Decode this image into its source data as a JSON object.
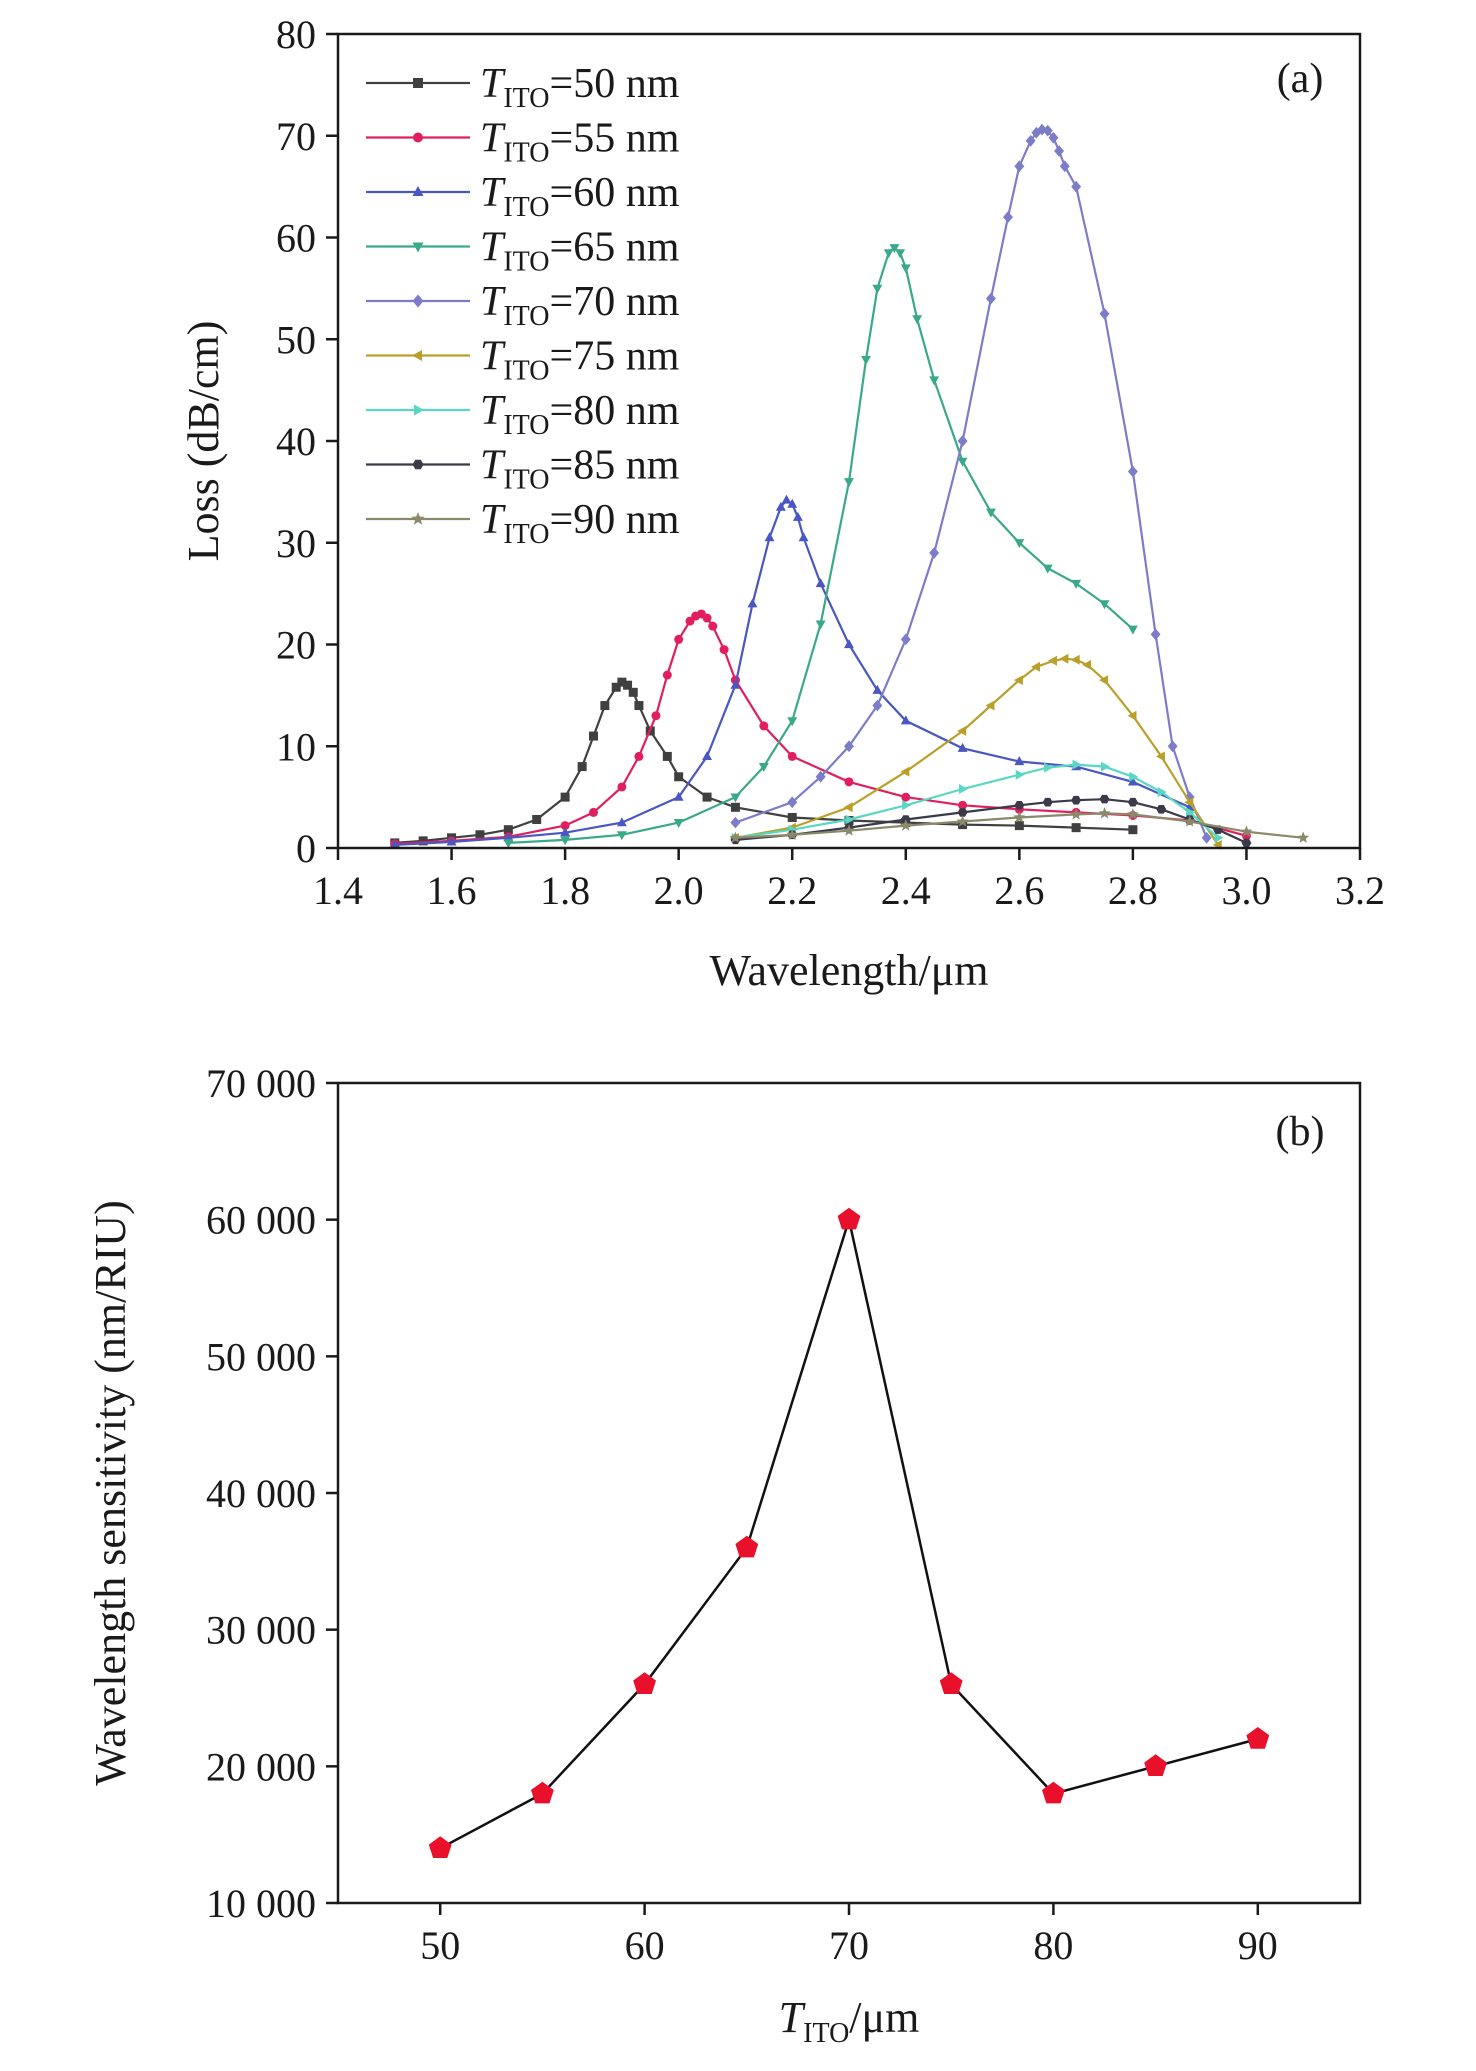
{
  "chart_data": [
    {
      "id": "a",
      "type": "line",
      "panel_label": "(a)",
      "xlabel": "Wavelength/μm",
      "ylabel": "Loss (dB/cm)",
      "xlim": [
        1.4,
        3.2
      ],
      "ylim": [
        0,
        80
      ],
      "x_ticks": [
        1.4,
        1.6,
        1.8,
        2.0,
        2.2,
        2.4,
        2.6,
        2.8,
        3.0,
        3.2
      ],
      "x_tick_labels": [
        "1.4",
        "1.6",
        "1.8",
        "2.0",
        "2.2",
        "2.4",
        "2.6",
        "2.8",
        "3.0",
        "3.2"
      ],
      "y_ticks": [
        0,
        10,
        20,
        30,
        40,
        50,
        60,
        70,
        80
      ],
      "y_tick_labels": [
        "0",
        "10",
        "20",
        "30",
        "40",
        "50",
        "60",
        "70",
        "80"
      ],
      "legend_position": "top-left",
      "legend_var": "T",
      "legend_sub": "ITO",
      "series": [
        {
          "name": "TITO=50 nm",
          "legend_value": "=50 nm",
          "color": "#404040",
          "marker": "square",
          "x": [
            1.5,
            1.55,
            1.6,
            1.65,
            1.7,
            1.75,
            1.8,
            1.83,
            1.85,
            1.87,
            1.89,
            1.9,
            1.91,
            1.92,
            1.93,
            1.95,
            1.98,
            2.0,
            2.05,
            2.1,
            2.2,
            2.3,
            2.4,
            2.5,
            2.6,
            2.7,
            2.8
          ],
          "y": [
            0.5,
            0.7,
            1.0,
            1.3,
            1.8,
            2.8,
            5.0,
            8.0,
            11.0,
            14.0,
            15.8,
            16.3,
            16.0,
            15.3,
            14.0,
            11.5,
            9.0,
            7.0,
            5.0,
            4.0,
            3.0,
            2.7,
            2.5,
            2.3,
            2.2,
            2.0,
            1.8
          ]
        },
        {
          "name": "TITO=55 nm",
          "legend_value": "=55 nm",
          "color": "#e0205e",
          "marker": "circle",
          "x": [
            1.5,
            1.6,
            1.7,
            1.8,
            1.85,
            1.9,
            1.93,
            1.96,
            1.98,
            2.0,
            2.02,
            2.03,
            2.04,
            2.05,
            2.06,
            2.08,
            2.1,
            2.15,
            2.2,
            2.3,
            2.4,
            2.5,
            2.6,
            2.7,
            2.8,
            2.9,
            3.0
          ],
          "y": [
            0.4,
            0.7,
            1.1,
            2.2,
            3.5,
            6.0,
            9.0,
            13.0,
            17.0,
            20.5,
            22.3,
            22.8,
            23.0,
            22.6,
            21.8,
            19.5,
            16.5,
            12.0,
            9.0,
            6.5,
            5.0,
            4.2,
            3.8,
            3.5,
            3.2,
            2.7,
            1.2
          ]
        },
        {
          "name": "TITO=60 nm",
          "legend_value": "=60 nm",
          "color": "#4a56c2",
          "marker": "triangle-up",
          "x": [
            1.5,
            1.6,
            1.7,
            1.8,
            1.9,
            2.0,
            2.05,
            2.1,
            2.13,
            2.16,
            2.18,
            2.19,
            2.2,
            2.21,
            2.22,
            2.25,
            2.3,
            2.35,
            2.4,
            2.5,
            2.6,
            2.7,
            2.8,
            2.9
          ],
          "y": [
            0.3,
            0.6,
            1.0,
            1.5,
            2.5,
            5.0,
            9.0,
            16.0,
            24.0,
            30.5,
            33.5,
            34.2,
            33.8,
            32.5,
            30.5,
            26.0,
            20.0,
            15.5,
            12.5,
            9.8,
            8.5,
            8.0,
            6.5,
            4.0
          ]
        },
        {
          "name": "TITO=65 nm",
          "legend_value": "=65 nm",
          "color": "#3aa88a",
          "marker": "triangle-down",
          "x": [
            1.7,
            1.8,
            1.9,
            2.0,
            2.1,
            2.15,
            2.2,
            2.25,
            2.3,
            2.33,
            2.35,
            2.37,
            2.38,
            2.39,
            2.4,
            2.42,
            2.45,
            2.5,
            2.55,
            2.6,
            2.65,
            2.7,
            2.75,
            2.8
          ],
          "y": [
            0.5,
            0.8,
            1.3,
            2.5,
            5.0,
            8.0,
            12.5,
            22.0,
            36.0,
            48.0,
            55.0,
            58.5,
            59.0,
            58.5,
            57.0,
            52.0,
            46.0,
            38.0,
            33.0,
            30.0,
            27.5,
            26.0,
            24.0,
            21.5
          ]
        },
        {
          "name": "TITO=70 nm",
          "legend_value": "=70 nm",
          "color": "#7c7cc8",
          "marker": "diamond",
          "x": [
            2.1,
            2.2,
            2.25,
            2.3,
            2.35,
            2.4,
            2.45,
            2.5,
            2.55,
            2.58,
            2.6,
            2.62,
            2.63,
            2.64,
            2.65,
            2.66,
            2.67,
            2.68,
            2.7,
            2.75,
            2.8,
            2.84,
            2.87,
            2.9,
            2.93
          ],
          "y": [
            2.5,
            4.5,
            7.0,
            10.0,
            14.0,
            20.5,
            29.0,
            40.0,
            54.0,
            62.0,
            67.0,
            69.5,
            70.3,
            70.6,
            70.5,
            69.8,
            68.5,
            67.0,
            65.0,
            52.5,
            37.0,
            21.0,
            10.0,
            5.0,
            1.0
          ]
        },
        {
          "name": "TITO=75 nm",
          "legend_value": "=75 nm",
          "color": "#b8a02a",
          "marker": "triangle-left",
          "x": [
            2.1,
            2.2,
            2.3,
            2.4,
            2.5,
            2.55,
            2.6,
            2.63,
            2.66,
            2.68,
            2.7,
            2.72,
            2.75,
            2.8,
            2.85,
            2.9,
            2.95
          ],
          "y": [
            1.0,
            2.0,
            4.0,
            7.5,
            11.5,
            14.0,
            16.5,
            17.8,
            18.4,
            18.6,
            18.5,
            18.0,
            16.5,
            13.0,
            9.0,
            4.5,
            0.3
          ]
        },
        {
          "name": "TITO=80 nm",
          "legend_value": "=80 nm",
          "color": "#5ad6c4",
          "marker": "triangle-right",
          "x": [
            2.1,
            2.2,
            2.3,
            2.4,
            2.5,
            2.6,
            2.65,
            2.7,
            2.75,
            2.8,
            2.85,
            2.9,
            2.95
          ],
          "y": [
            1.0,
            1.8,
            2.8,
            4.2,
            5.8,
            7.2,
            7.9,
            8.2,
            8.0,
            7.0,
            5.5,
            3.5,
            1.0
          ]
        },
        {
          "name": "TITO=85 nm",
          "legend_value": "=85 nm",
          "color": "#3a3a4a",
          "marker": "hexagon",
          "x": [
            2.1,
            2.2,
            2.3,
            2.4,
            2.5,
            2.6,
            2.65,
            2.7,
            2.75,
            2.8,
            2.85,
            2.9,
            2.95,
            3.0
          ],
          "y": [
            0.8,
            1.3,
            2.0,
            2.8,
            3.5,
            4.2,
            4.5,
            4.7,
            4.8,
            4.5,
            3.8,
            2.8,
            1.8,
            0.5
          ]
        },
        {
          "name": "TITO=90 nm",
          "legend_value": "=90 nm",
          "color": "#8a8a6a",
          "marker": "star",
          "x": [
            2.1,
            2.2,
            2.3,
            2.4,
            2.5,
            2.6,
            2.7,
            2.75,
            2.8,
            2.9,
            3.0,
            3.1
          ],
          "y": [
            1.0,
            1.3,
            1.7,
            2.2,
            2.6,
            3.0,
            3.3,
            3.4,
            3.3,
            2.6,
            1.6,
            1.0
          ]
        }
      ]
    },
    {
      "id": "b",
      "type": "line",
      "panel_label": "(b)",
      "xlabel_var": "T",
      "xlabel_sub": "ITO",
      "xlabel_rest": "/μm",
      "ylabel": "Wavelength sensitivity (nm/RIU)",
      "xlim": [
        45,
        95
      ],
      "ylim": [
        10000,
        70000
      ],
      "x_ticks": [
        50,
        60,
        70,
        80,
        90
      ],
      "x_tick_labels": [
        "50",
        "60",
        "70",
        "80",
        "90"
      ],
      "y_ticks": [
        10000,
        20000,
        30000,
        40000,
        50000,
        60000,
        70000
      ],
      "y_tick_labels": [
        "10 000",
        "20 000",
        "30 000",
        "40 000",
        "50 000",
        "60 000",
        "70 000"
      ],
      "series": [
        {
          "line_color": "#111111",
          "marker_color": "#e8102a",
          "marker": "pentagon",
          "x": [
            50,
            55,
            60,
            65,
            70,
            75,
            80,
            85,
            90
          ],
          "y": [
            14000,
            18000,
            26000,
            36000,
            60000,
            26000,
            18000,
            20000,
            22000
          ]
        }
      ]
    }
  ]
}
